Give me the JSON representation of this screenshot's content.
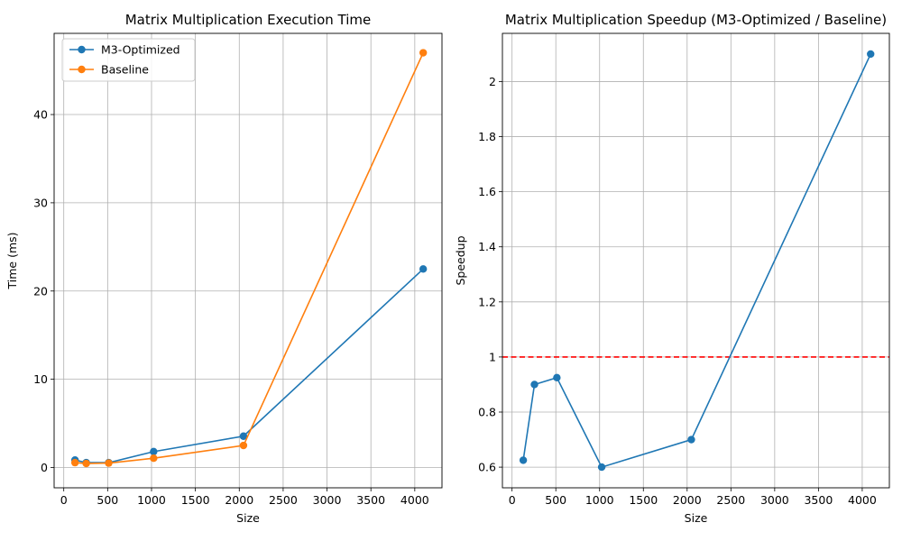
{
  "chart_data": [
    {
      "type": "line",
      "title": "Matrix Multiplication Execution Time",
      "xlabel": "Size",
      "ylabel": "Time (ms)",
      "xlim": [
        -110,
        4310
      ],
      "ylim": [
        -2.3,
        49.2
      ],
      "xticks": [
        0,
        500,
        1000,
        1500,
        2000,
        2500,
        3000,
        3500,
        4000
      ],
      "yticks": [
        0,
        10,
        20,
        30,
        40
      ],
      "grid": true,
      "legend_position": "upper-left",
      "series": [
        {
          "name": "M3-Optimized",
          "color": "#1f77b4",
          "x": [
            128,
            256,
            512,
            1024,
            2048,
            4096
          ],
          "y": [
            0.85,
            0.55,
            0.55,
            1.8,
            3.55,
            22.5
          ]
        },
        {
          "name": "Baseline",
          "color": "#ff7f0e",
          "x": [
            128,
            256,
            512,
            1024,
            2048,
            4096
          ],
          "y": [
            0.55,
            0.45,
            0.5,
            1.05,
            2.5,
            47.0
          ]
        }
      ]
    },
    {
      "type": "line",
      "title": "Matrix Multiplication Speedup (M3-Optimized / Baseline)",
      "xlabel": "Size",
      "ylabel": "Speedup",
      "xlim": [
        -110,
        4310
      ],
      "ylim": [
        0.525,
        2.175
      ],
      "xticks": [
        0,
        500,
        1000,
        1500,
        2000,
        2500,
        3000,
        3500,
        4000
      ],
      "yticks": [
        0.6,
        0.8,
        1.0,
        1.2,
        1.4,
        1.6,
        1.8,
        2.0
      ],
      "grid": true,
      "reference_line": {
        "y": 1.0,
        "color": "#ff0000",
        "style": "dashed"
      },
      "series": [
        {
          "name": "Speedup",
          "color": "#1f77b4",
          "x": [
            128,
            256,
            512,
            1024,
            2048,
            4096
          ],
          "y": [
            0.625,
            0.9,
            0.925,
            0.6,
            0.7,
            2.1
          ]
        }
      ]
    }
  ]
}
